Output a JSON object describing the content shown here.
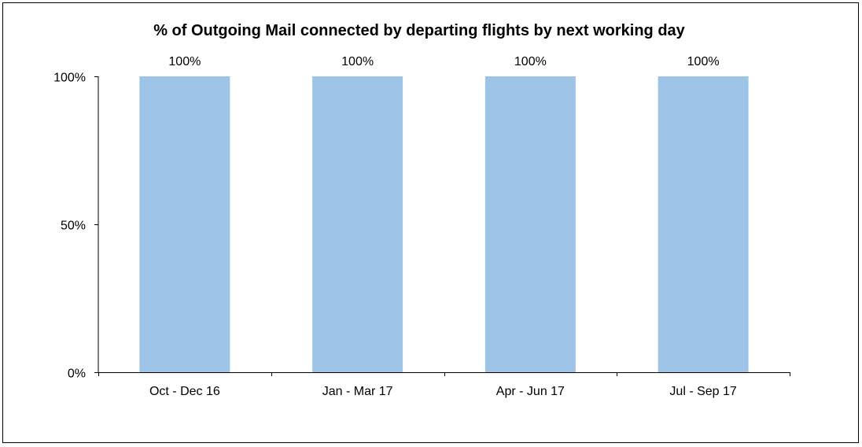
{
  "chart_data": {
    "type": "bar",
    "title": "% of Outgoing Mail connected by departing flights by next working day",
    "xlabel": "",
    "ylabel": "",
    "categories": [
      "Oct - Dec 16",
      "Jan - Mar 17",
      "Apr - Jun 17",
      "Jul - Sep 17"
    ],
    "series": [
      {
        "values": [
          100,
          100,
          100,
          100
        ],
        "data_labels": [
          "100%",
          "100%",
          "100%",
          "100%"
        ],
        "color": "#9dc3e6"
      }
    ],
    "ylim": [
      0,
      100
    ],
    "y_ticks": [
      0,
      50,
      100
    ],
    "y_tick_labels": [
      "0%",
      "50%",
      "100%"
    ],
    "grid": false,
    "legend": "none"
  }
}
